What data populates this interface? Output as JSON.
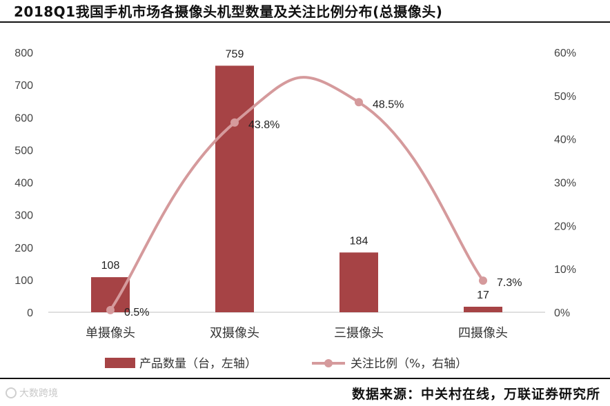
{
  "title": "2018Q1我国手机市场各摄像头机型数量及关注比例分布(总摄像头)",
  "source": "数据来源：中关村在线，万联证券研究所",
  "watermark": "大数跨境",
  "colors": {
    "bar": "#A64345",
    "line": "#D59A9C",
    "axis": "#bfbfbf"
  },
  "chart_data": {
    "type": "bar+line",
    "categories": [
      "单摄像头",
      "双摄像头",
      "三摄像头",
      "四摄像头"
    ],
    "series": [
      {
        "name": "产品数量（台，左轴）",
        "type": "bar",
        "axis": "left",
        "values": [
          108,
          759,
          184,
          17
        ],
        "labels": [
          "108",
          "759",
          "184",
          "17"
        ]
      },
      {
        "name": "关注比例（%，右轴）",
        "type": "line",
        "axis": "right",
        "smooth": true,
        "values": [
          0.5,
          43.8,
          48.5,
          7.3
        ],
        "labels": [
          "0.5%",
          "43.8%",
          "48.5%",
          "7.3%"
        ]
      }
    ],
    "y_left": {
      "min": 0,
      "max": 800,
      "ticks": [
        "0",
        "100",
        "200",
        "300",
        "400",
        "500",
        "600",
        "700",
        "800"
      ]
    },
    "y_right": {
      "min": 0,
      "max": 60,
      "ticks": [
        "0%",
        "10%",
        "20%",
        "30%",
        "40%",
        "50%",
        "60%"
      ]
    },
    "grid": false,
    "legend_position": "bottom"
  }
}
